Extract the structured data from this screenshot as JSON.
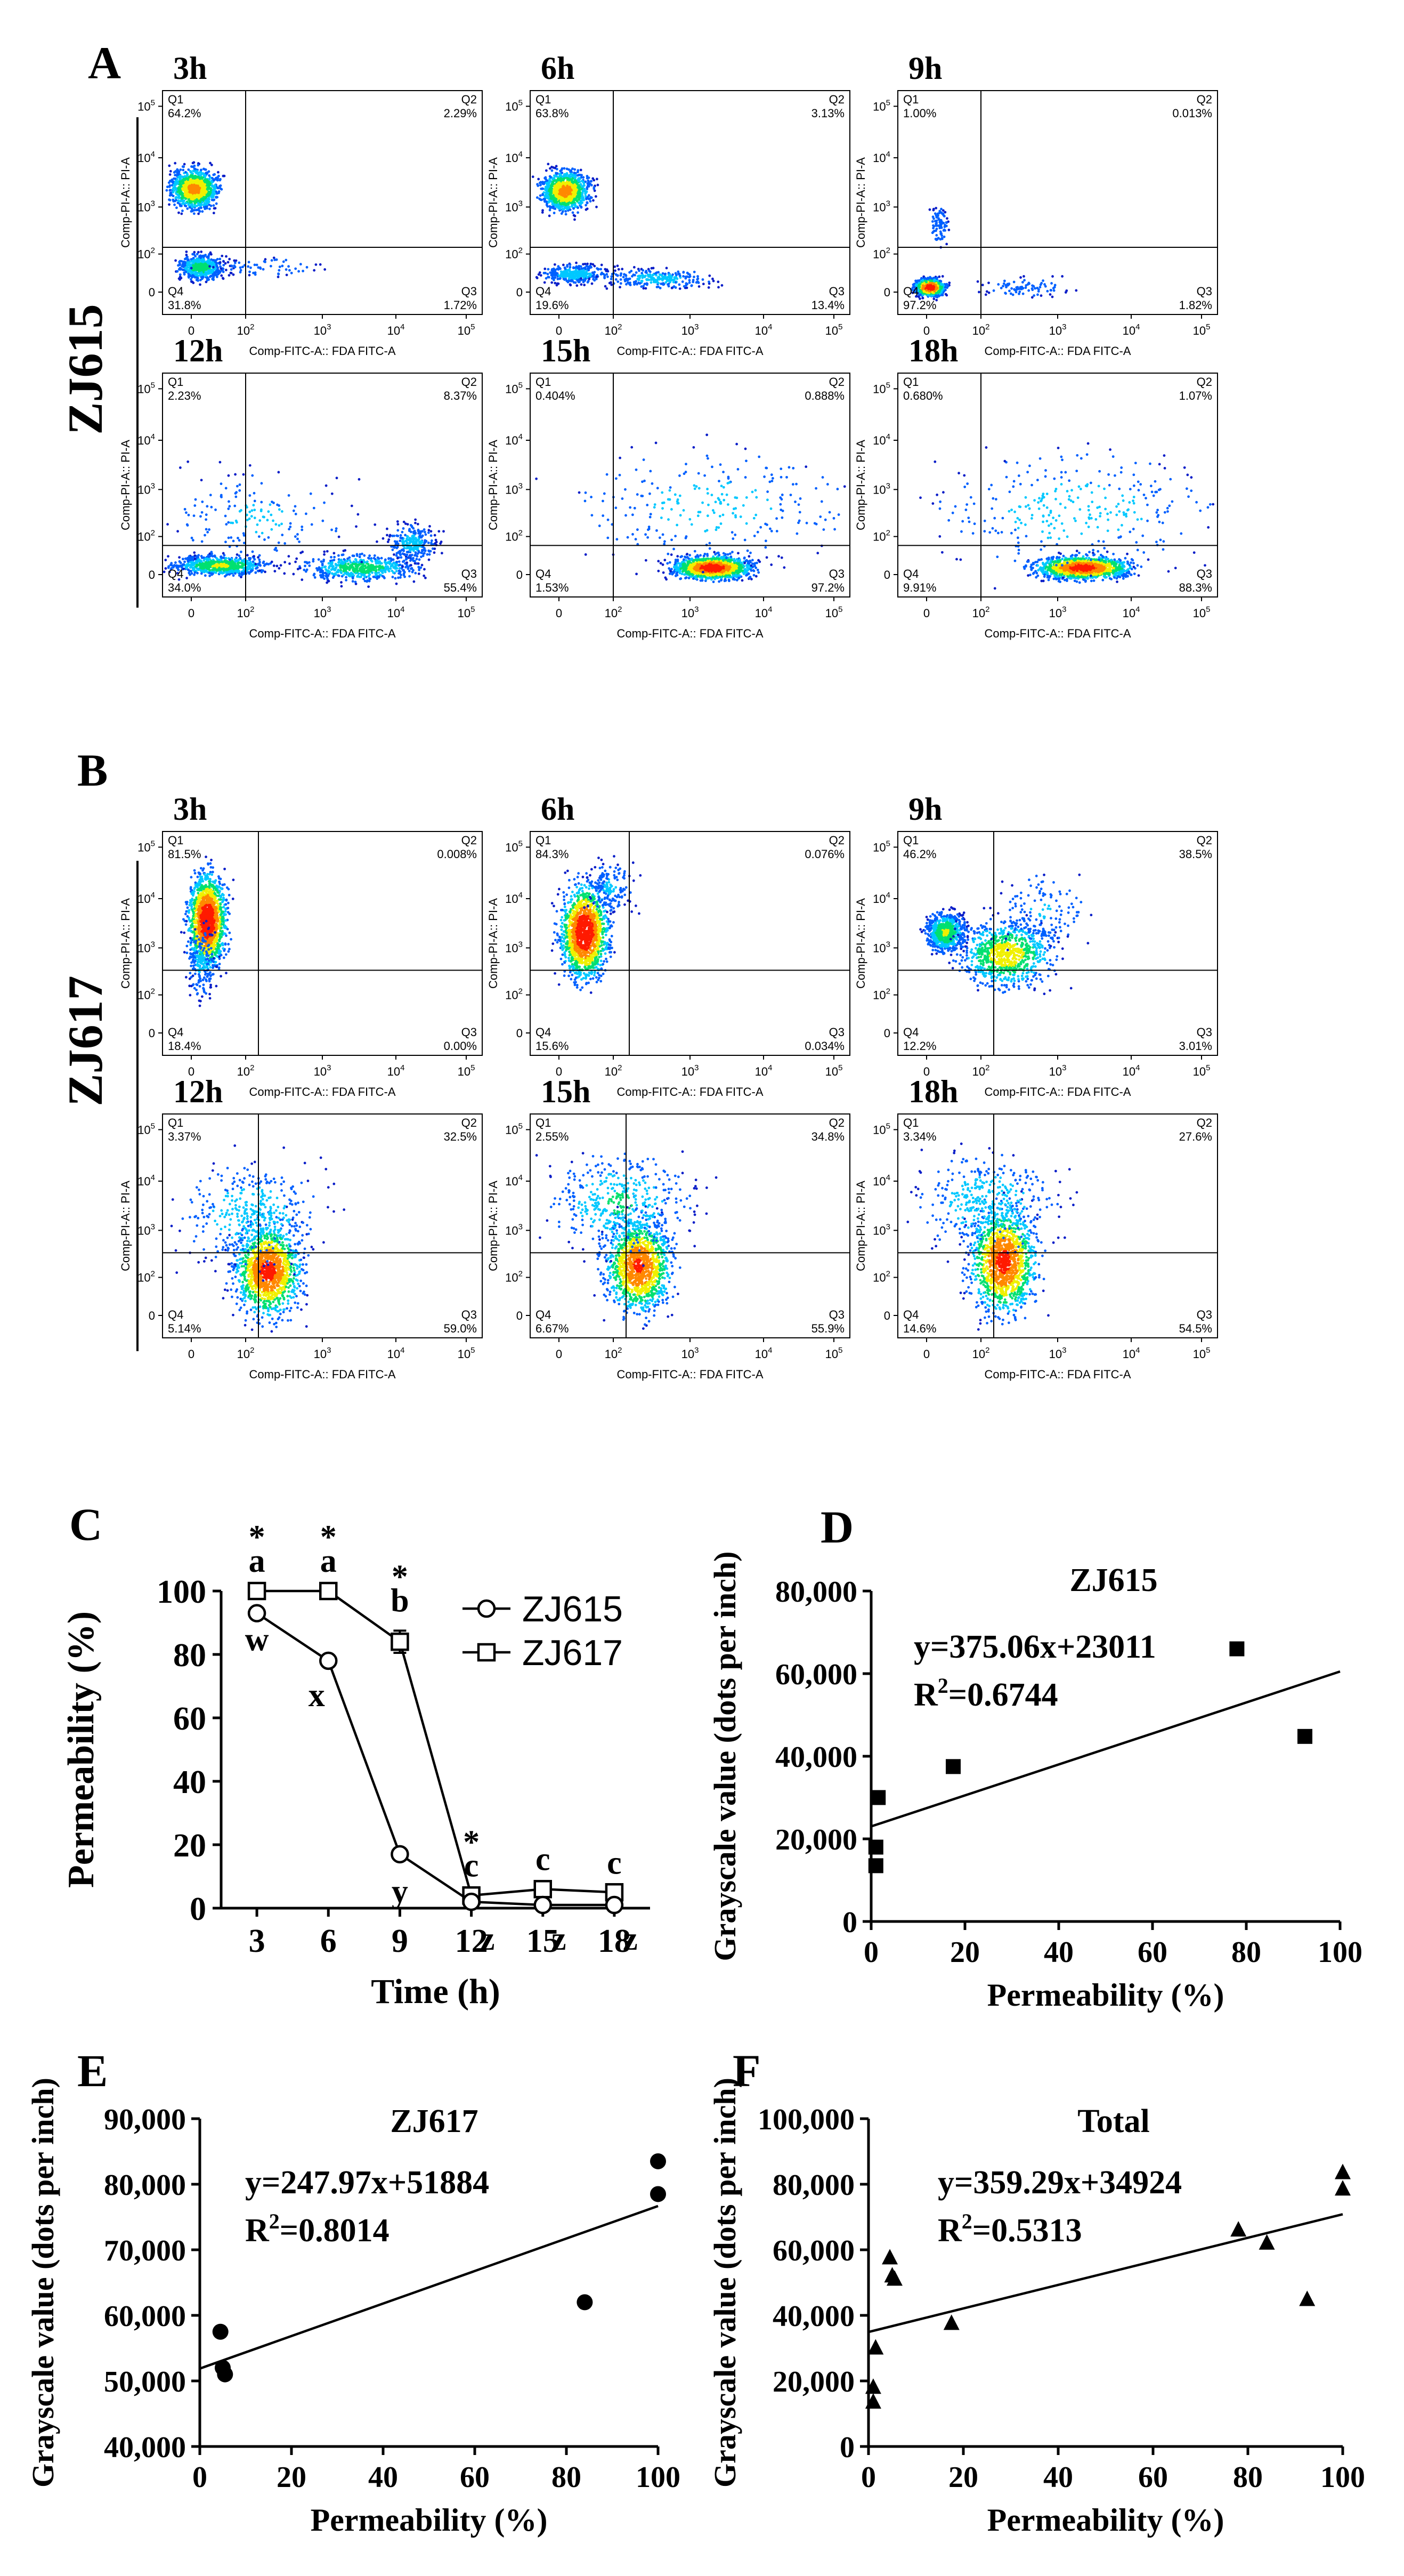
{
  "panel_labels": [
    "A",
    "B",
    "C",
    "D",
    "E",
    "F"
  ],
  "strains": [
    "ZJ615",
    "ZJ617"
  ],
  "flow": {
    "x_axis_label": "Comp-FITC-A:: FDA FITC-A",
    "y_axis_label": "Comp-PI-A:: PI-A",
    "tick_labels": [
      "0",
      "10",
      "10",
      "10",
      "10",
      "10"
    ],
    "tick_exponents": [
      "",
      "2",
      "3",
      "4",
      "5"
    ],
    "quadrants": [
      "Q1",
      "Q2",
      "Q3",
      "Q4"
    ]
  },
  "chart_data": [
    {
      "type": "scatter",
      "panel": "A",
      "strain": "ZJ615",
      "plots": [
        {
          "title": "3h",
          "Q1": "64.2%",
          "Q2": "2.29%",
          "Q3": "1.72%",
          "Q4": "31.8%"
        },
        {
          "title": "6h",
          "Q1": "63.8%",
          "Q2": "3.13%",
          "Q3": "13.4%",
          "Q4": "19.6%"
        },
        {
          "title": "9h",
          "Q1": "1.00%",
          "Q2": "0.013%",
          "Q3": "1.82%",
          "Q4": "97.2%"
        },
        {
          "title": "12h",
          "Q1": "2.23%",
          "Q2": "8.37%",
          "Q3": "55.4%",
          "Q4": "34.0%"
        },
        {
          "title": "15h",
          "Q1": "0.404%",
          "Q2": "0.888%",
          "Q3": "97.2%",
          "Q4": "1.53%"
        },
        {
          "title": "18h",
          "Q1": "0.680%",
          "Q2": "1.07%",
          "Q3": "88.3%",
          "Q4": "9.91%"
        }
      ]
    },
    {
      "type": "scatter",
      "panel": "B",
      "strain": "ZJ617",
      "plots": [
        {
          "title": "3h",
          "Q1": "81.5%",
          "Q2": "0.008%",
          "Q3": "0.00%",
          "Q4": "18.4%"
        },
        {
          "title": "6h",
          "Q1": "84.3%",
          "Q2": "0.076%",
          "Q3": "0.034%",
          "Q4": "15.6%"
        },
        {
          "title": "9h",
          "Q1": "46.2%",
          "Q2": "38.5%",
          "Q3": "3.01%",
          "Q4": "12.2%"
        },
        {
          "title": "12h",
          "Q1": "3.37%",
          "Q2": "32.5%",
          "Q3": "59.0%",
          "Q4": "5.14%"
        },
        {
          "title": "15h",
          "Q1": "2.55%",
          "Q2": "34.8%",
          "Q3": "55.9%",
          "Q4": "6.67%"
        },
        {
          "title": "18h",
          "Q1": "3.34%",
          "Q2": "27.6%",
          "Q3": "54.5%",
          "Q4": "14.6%"
        }
      ]
    },
    {
      "type": "line",
      "panel": "C",
      "xlabel": "Time (h)",
      "ylabel": "Permeability (%)",
      "x": [
        3,
        6,
        9,
        12,
        15,
        18
      ],
      "xlim": [
        1.5,
        19.5
      ],
      "ylim": [
        0,
        100
      ],
      "xticks": [
        "3",
        "6",
        "9",
        "12",
        "15",
        "18"
      ],
      "yticks": [
        "0",
        "20",
        "40",
        "60",
        "80",
        "100"
      ],
      "series": [
        {
          "name": "ZJ615",
          "values": [
            93,
            78,
            17,
            2,
            1,
            1
          ],
          "errors": [
            1.5,
            1,
            1.5,
            0.5,
            0.5,
            0.5
          ],
          "letters": [
            "w",
            "x",
            "y",
            "z",
            "z",
            "z"
          ]
        },
        {
          "name": "ZJ617",
          "values": [
            100,
            100,
            84,
            4,
            6,
            5
          ],
          "errors": [
            0,
            0,
            3.5,
            1,
            1,
            0.8
          ],
          "letters": [
            "a",
            "a",
            "b",
            "c",
            "c",
            "c"
          ],
          "stars": [
            "*",
            "*",
            "*",
            "*",
            "",
            ""
          ]
        }
      ]
    },
    {
      "type": "scatter",
      "panel": "D",
      "title": "ZJ615",
      "equation": "y=375.06x+23011",
      "r2_prefix": "R",
      "r2_sup": "2",
      "r2_value": "=0.6744",
      "xlabel": "Permeability (%)",
      "ylabel": "Grayscale value (dots per inch)",
      "xlim": [
        0,
        100
      ],
      "ylim": [
        0,
        80000
      ],
      "xticks": [
        "0",
        "20",
        "40",
        "60",
        "80",
        "100"
      ],
      "yticks": [
        "0",
        "20,000",
        "40,000",
        "60,000",
        "80,000"
      ],
      "marker": "square",
      "points": [
        [
          1,
          13500
        ],
        [
          1,
          18000
        ],
        [
          1.5,
          30000
        ],
        [
          17.5,
          37500
        ],
        [
          78,
          66000
        ],
        [
          92.5,
          44800
        ]
      ],
      "fit": {
        "slope": 375.06,
        "intercept": 23011
      }
    },
    {
      "type": "scatter",
      "panel": "E",
      "title": "ZJ617",
      "equation": "y=247.97x+51884",
      "r2_prefix": "R",
      "r2_sup": "2",
      "r2_value": "=0.8014",
      "xlabel": "Permeability (%)",
      "ylabel": "Grayscale value (dots per inch)",
      "xlim": [
        0,
        100
      ],
      "ylim": [
        40000,
        90000
      ],
      "xticks": [
        "0",
        "20",
        "40",
        "60",
        "80",
        "100"
      ],
      "yticks": [
        "40,000",
        "50,000",
        "60,000",
        "70,000",
        "80,000",
        "90,000"
      ],
      "marker": "circle",
      "points": [
        [
          4.5,
          57500
        ],
        [
          5,
          52000
        ],
        [
          5.5,
          51000
        ],
        [
          84,
          62000
        ],
        [
          100,
          83500
        ],
        [
          100,
          78500
        ]
      ],
      "fit": {
        "slope": 247.97,
        "intercept": 51884
      }
    },
    {
      "type": "scatter",
      "panel": "F",
      "title": "Total",
      "equation": "y=359.29x+34924",
      "r2_prefix": "R",
      "r2_sup": "2",
      "r2_value": "=0.5313",
      "xlabel": "Permeability (%)",
      "ylabel": "Grayscale value (dots per inch)",
      "xlim": [
        0,
        100
      ],
      "ylim": [
        0,
        100000
      ],
      "xticks": [
        "0",
        "20",
        "40",
        "60",
        "80",
        "100"
      ],
      "yticks": [
        "0",
        "20,000",
        "40,000",
        "60,000",
        "80,000",
        "100,000"
      ],
      "marker": "triangle",
      "points": [
        [
          1,
          13500
        ],
        [
          1,
          18000
        ],
        [
          1.5,
          30000
        ],
        [
          17.5,
          37500
        ],
        [
          78,
          66000
        ],
        [
          92.5,
          44800
        ],
        [
          4.5,
          57500
        ],
        [
          5,
          52000
        ],
        [
          5.5,
          51000
        ],
        [
          84,
          62000
        ],
        [
          100,
          83500
        ],
        [
          100,
          78500
        ]
      ],
      "fit": {
        "slope": 359.29,
        "intercept": 34924
      }
    }
  ]
}
